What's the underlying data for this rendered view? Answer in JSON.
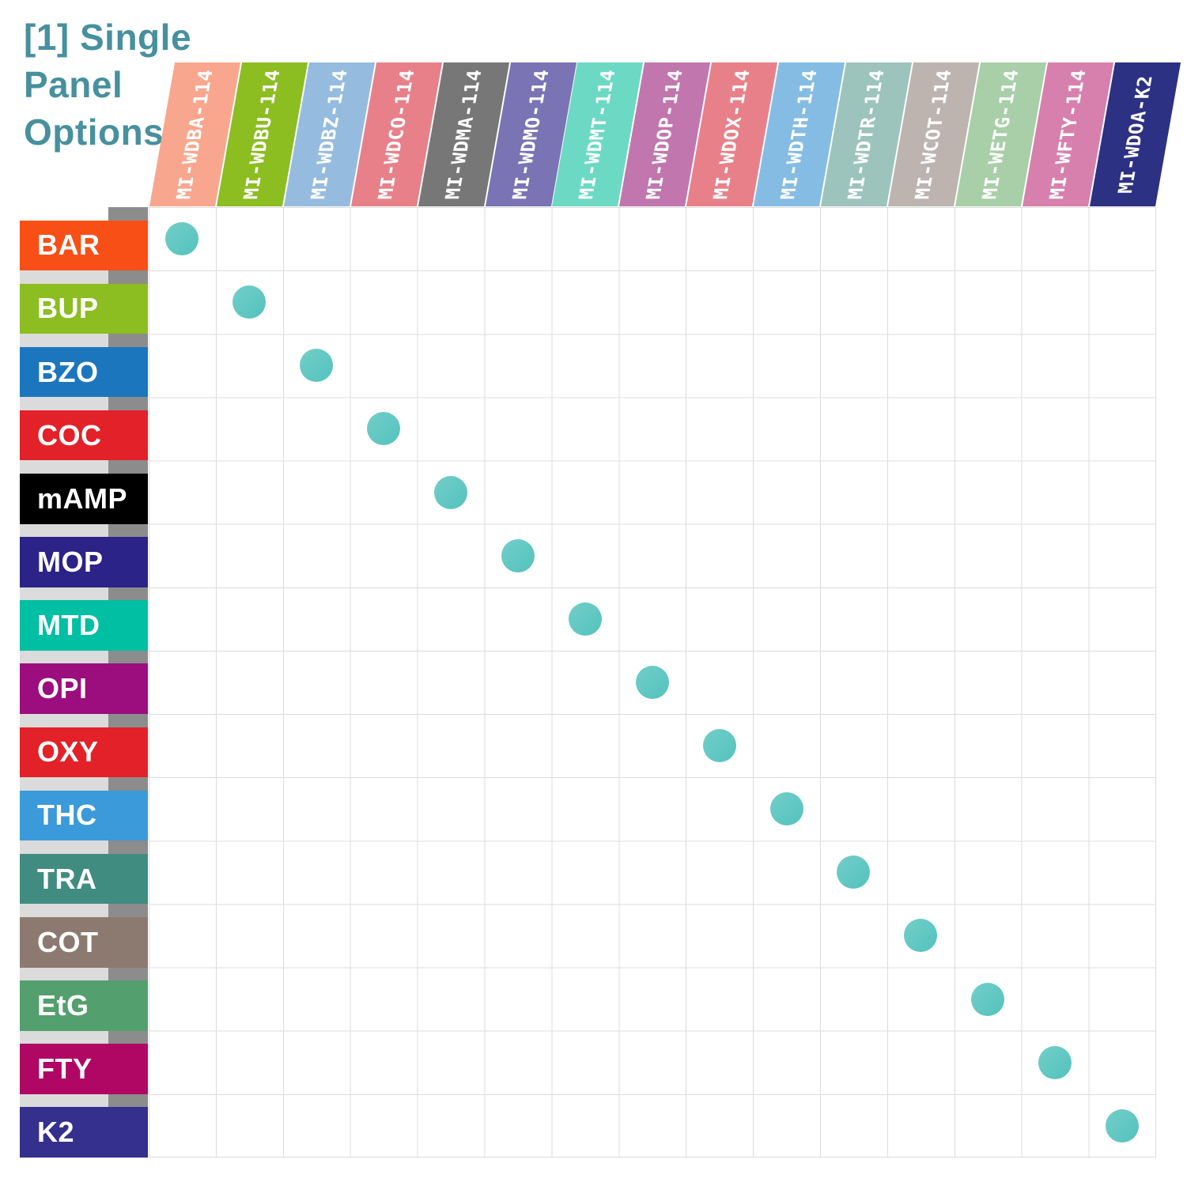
{
  "title": {
    "lines": [
      "[1] Single",
      "Panel",
      "Options"
    ]
  },
  "colors": {
    "title": "#47909E",
    "header_text": "#FFFFFF",
    "row_label_text": "#FFFFFF",
    "grid_line": "#DCDCDC",
    "shadow_light": "#DBDBDB",
    "shadow_dark": "#8C8C8C",
    "dot_start": "#72CEC9",
    "dot_end": "#54C2BD",
    "background": "#FFFFFF"
  },
  "chart_data": {
    "type": "table",
    "title": "[1] Single Panel Options",
    "columns": [
      {
        "code": "MI-WDBA-114",
        "color": "#F8A78E"
      },
      {
        "code": "MI-WDBU-114",
        "color": "#8CBD21"
      },
      {
        "code": "MI-WDBZ-114",
        "color": "#95BCDF"
      },
      {
        "code": "MI-WDCO-114",
        "color": "#E8808A"
      },
      {
        "code": "MI-WDMA-114",
        "color": "#777777"
      },
      {
        "code": "MI-WDMO-114",
        "color": "#7A73B4"
      },
      {
        "code": "MI-WDMT-114",
        "color": "#6CD9C4"
      },
      {
        "code": "MI-WDOP-114",
        "color": "#C176AE"
      },
      {
        "code": "MI-WDOX-114",
        "color": "#E8808A"
      },
      {
        "code": "MI-WDTH-114",
        "color": "#85BCE4"
      },
      {
        "code": "MI-WDTR-114",
        "color": "#9CC4BC"
      },
      {
        "code": "MI-WCOT-114",
        "color": "#BDB4AF"
      },
      {
        "code": "MI-WETG-114",
        "color": "#A8CFA8"
      },
      {
        "code": "MI-WFTY-114",
        "color": "#D780AD"
      },
      {
        "code": "MI-WDOA-K2",
        "color": "#2D3184"
      }
    ],
    "rows": [
      {
        "code": "BAR",
        "color": "#F84F16"
      },
      {
        "code": "BUP",
        "color": "#8CBD21"
      },
      {
        "code": "BZO",
        "color": "#1B76BE"
      },
      {
        "code": "COC",
        "color": "#E32128"
      },
      {
        "code": "mAMP",
        "color": "#000000"
      },
      {
        "code": "MOP",
        "color": "#2B2387"
      },
      {
        "code": "MTD",
        "color": "#00BFA2"
      },
      {
        "code": "OPI",
        "color": "#9C0E7D"
      },
      {
        "code": "OXY",
        "color": "#E32128"
      },
      {
        "code": "THC",
        "color": "#3B9AD9"
      },
      {
        "code": "TRA",
        "color": "#418C80"
      },
      {
        "code": "COT",
        "color": "#8C7A70"
      },
      {
        "code": "EtG",
        "color": "#53A06E"
      },
      {
        "code": "FTY",
        "color": "#B00765"
      },
      {
        "code": "K2",
        "color": "#352F8E"
      }
    ],
    "marks": [
      {
        "row": "BAR",
        "col": "MI-WDBA-114"
      },
      {
        "row": "BUP",
        "col": "MI-WDBU-114"
      },
      {
        "row": "BZO",
        "col": "MI-WDBZ-114"
      },
      {
        "row": "COC",
        "col": "MI-WDCO-114"
      },
      {
        "row": "mAMP",
        "col": "MI-WDMA-114"
      },
      {
        "row": "MOP",
        "col": "MI-WDMO-114"
      },
      {
        "row": "MTD",
        "col": "MI-WDMT-114"
      },
      {
        "row": "OPI",
        "col": "MI-WDOP-114"
      },
      {
        "row": "OXY",
        "col": "MI-WDOX-114"
      },
      {
        "row": "THC",
        "col": "MI-WDTH-114"
      },
      {
        "row": "TRA",
        "col": "MI-WDTR-114"
      },
      {
        "row": "COT",
        "col": "MI-WCOT-114"
      },
      {
        "row": "EtG",
        "col": "MI-WETG-114"
      },
      {
        "row": "FTY",
        "col": "MI-WFTY-114"
      },
      {
        "row": "K2",
        "col": "MI-WDOA-K2"
      }
    ]
  }
}
